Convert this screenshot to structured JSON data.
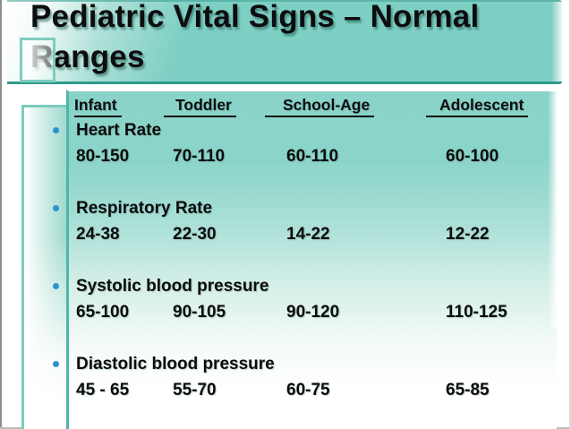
{
  "slide": {
    "title_lines": [
      "Pediatric Vital Signs – Normal",
      "Ranges"
    ]
  },
  "vitals_table": {
    "column_headers": [
      "Infant",
      "Toddler",
      "School-Age",
      "Adolescent"
    ],
    "rows": [
      {
        "label": "Heart Rate",
        "values": [
          "80-150",
          "70-110",
          "60-110",
          "60-100"
        ]
      },
      {
        "label": "Respiratory Rate",
        "values": [
          "24-38",
          "22-30",
          "14-22",
          "12-22"
        ]
      },
      {
        "label": "Systolic blood pressure",
        "values": [
          "65-100",
          "90-105",
          "90-120",
          "110-125"
        ]
      },
      {
        "label": "Diastolic blood pressure",
        "values": [
          "45 - 65",
          "55-70",
          "60-75",
          "65-85"
        ]
      }
    ]
  },
  "colors": {
    "accent_teal": "#7ecfc4",
    "panel_teal_top": "#8ad3c8",
    "panel_border_teal": "#4fb5a7",
    "title_bottom_line": "#2f9a8d",
    "bullet_blue": "#2d93d0",
    "text": "#0d0d0d"
  }
}
